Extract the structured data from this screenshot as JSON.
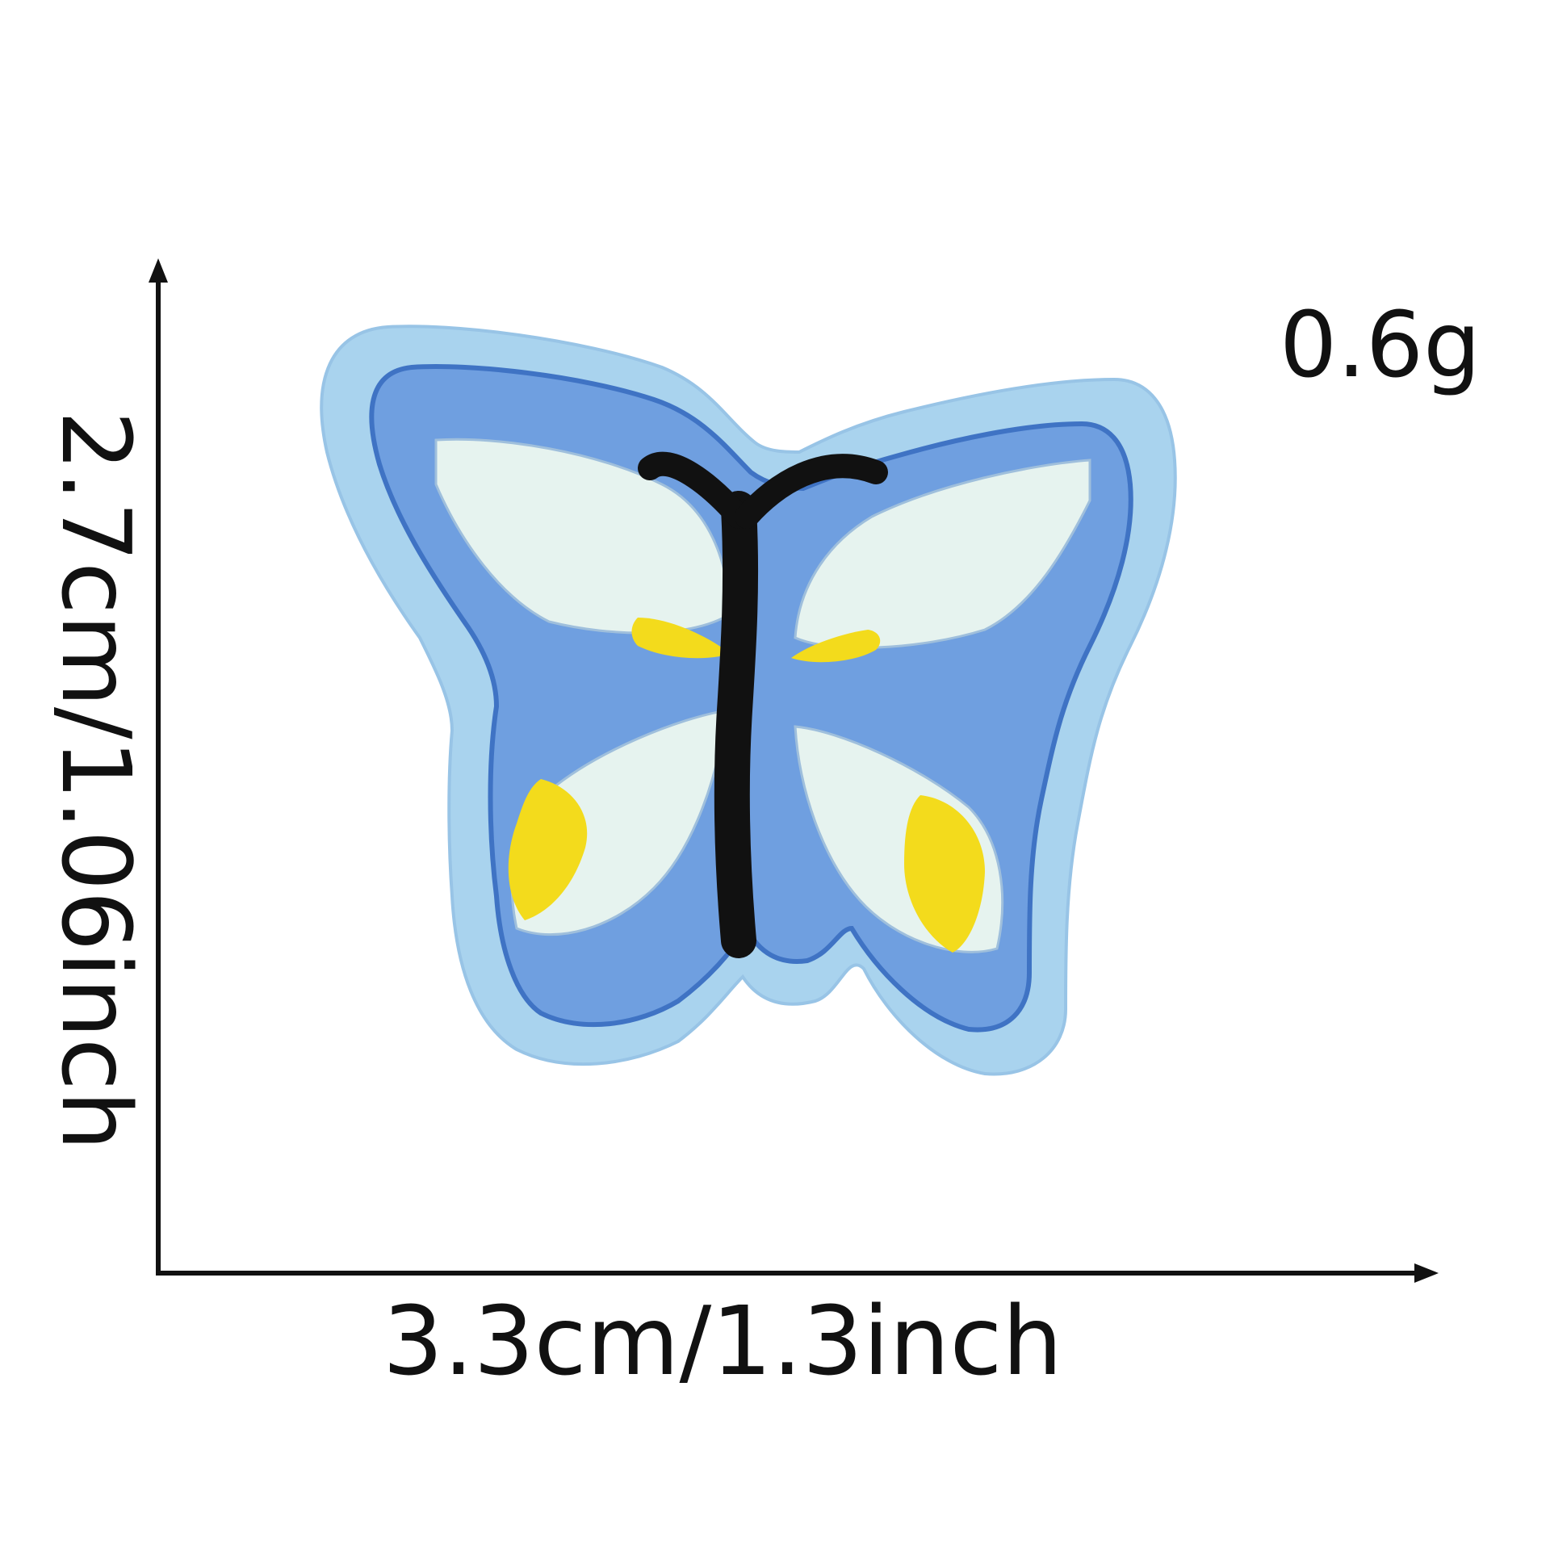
{
  "dimensions": {
    "width_label": "3.3cm/1.3inch",
    "height_label": "2.7cm/1.06inch",
    "weight_label": "0.6g"
  },
  "product": {
    "icon": "butterfly-patch-icon",
    "colors": {
      "felt_border": "#a9d3ee",
      "outer_wing": "#6f9fe0",
      "wing_dark_line": "#3f73c4",
      "wing_inner": "#e6f3ef",
      "spots": "#f3db1c",
      "body": "#111111"
    }
  },
  "colors": {
    "text": "#111111",
    "axis": "#111111",
    "background": "#ffffff"
  }
}
